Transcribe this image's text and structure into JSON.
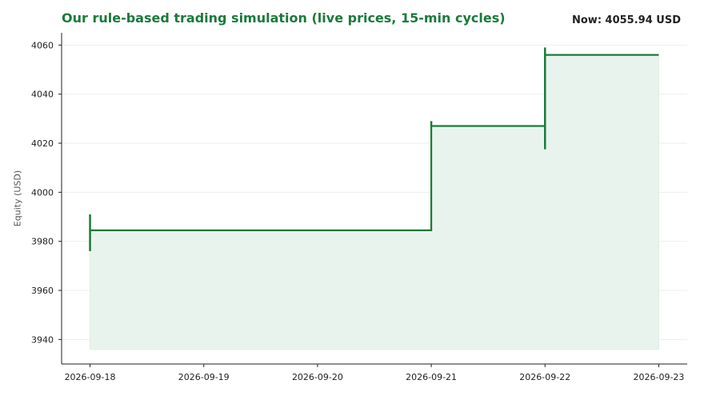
{
  "header": {
    "title": "Our rule-based trading simulation (live prices, 15-min cycles)",
    "now_label": "Now: 4055.94 USD"
  },
  "colors": {
    "line": "#1a7a3a",
    "fill": "#e9f3ed",
    "title": "#1a7a3a",
    "grid": "#eeeeee"
  },
  "chart_data": {
    "type": "line",
    "style": "step",
    "title": "Our rule-based trading simulation (live prices, 15-min cycles)",
    "xlabel": "",
    "ylabel": "Equity (USD)",
    "x_ticks": [
      "2026-09-18",
      "2026-09-19",
      "2026-09-20",
      "2026-09-21",
      "2026-09-22",
      "2026-09-23"
    ],
    "y_ticks": [
      3940,
      3960,
      3980,
      4000,
      4020,
      4040,
      4060
    ],
    "xlim": [
      "2026-09-17 18:00",
      "2026-09-23 06:00"
    ],
    "ylim": [
      3930,
      4065
    ],
    "grid": "horizontal",
    "fill_under": true,
    "series": [
      {
        "x": [
          "2026-09-18",
          "2026-09-21",
          "2026-09-22",
          "2026-09-23"
        ],
        "y": [
          3984.5,
          4027,
          4056,
          4056
        ],
        "spikes": [
          {
            "x": "2026-09-18",
            "low": 3976,
            "high": 3991
          },
          {
            "x": "2026-09-21",
            "low": 4027,
            "high": 4029
          },
          {
            "x": "2026-09-22",
            "low": 4017.5,
            "high": 4059
          }
        ]
      }
    ],
    "fill_base": 3936
  }
}
